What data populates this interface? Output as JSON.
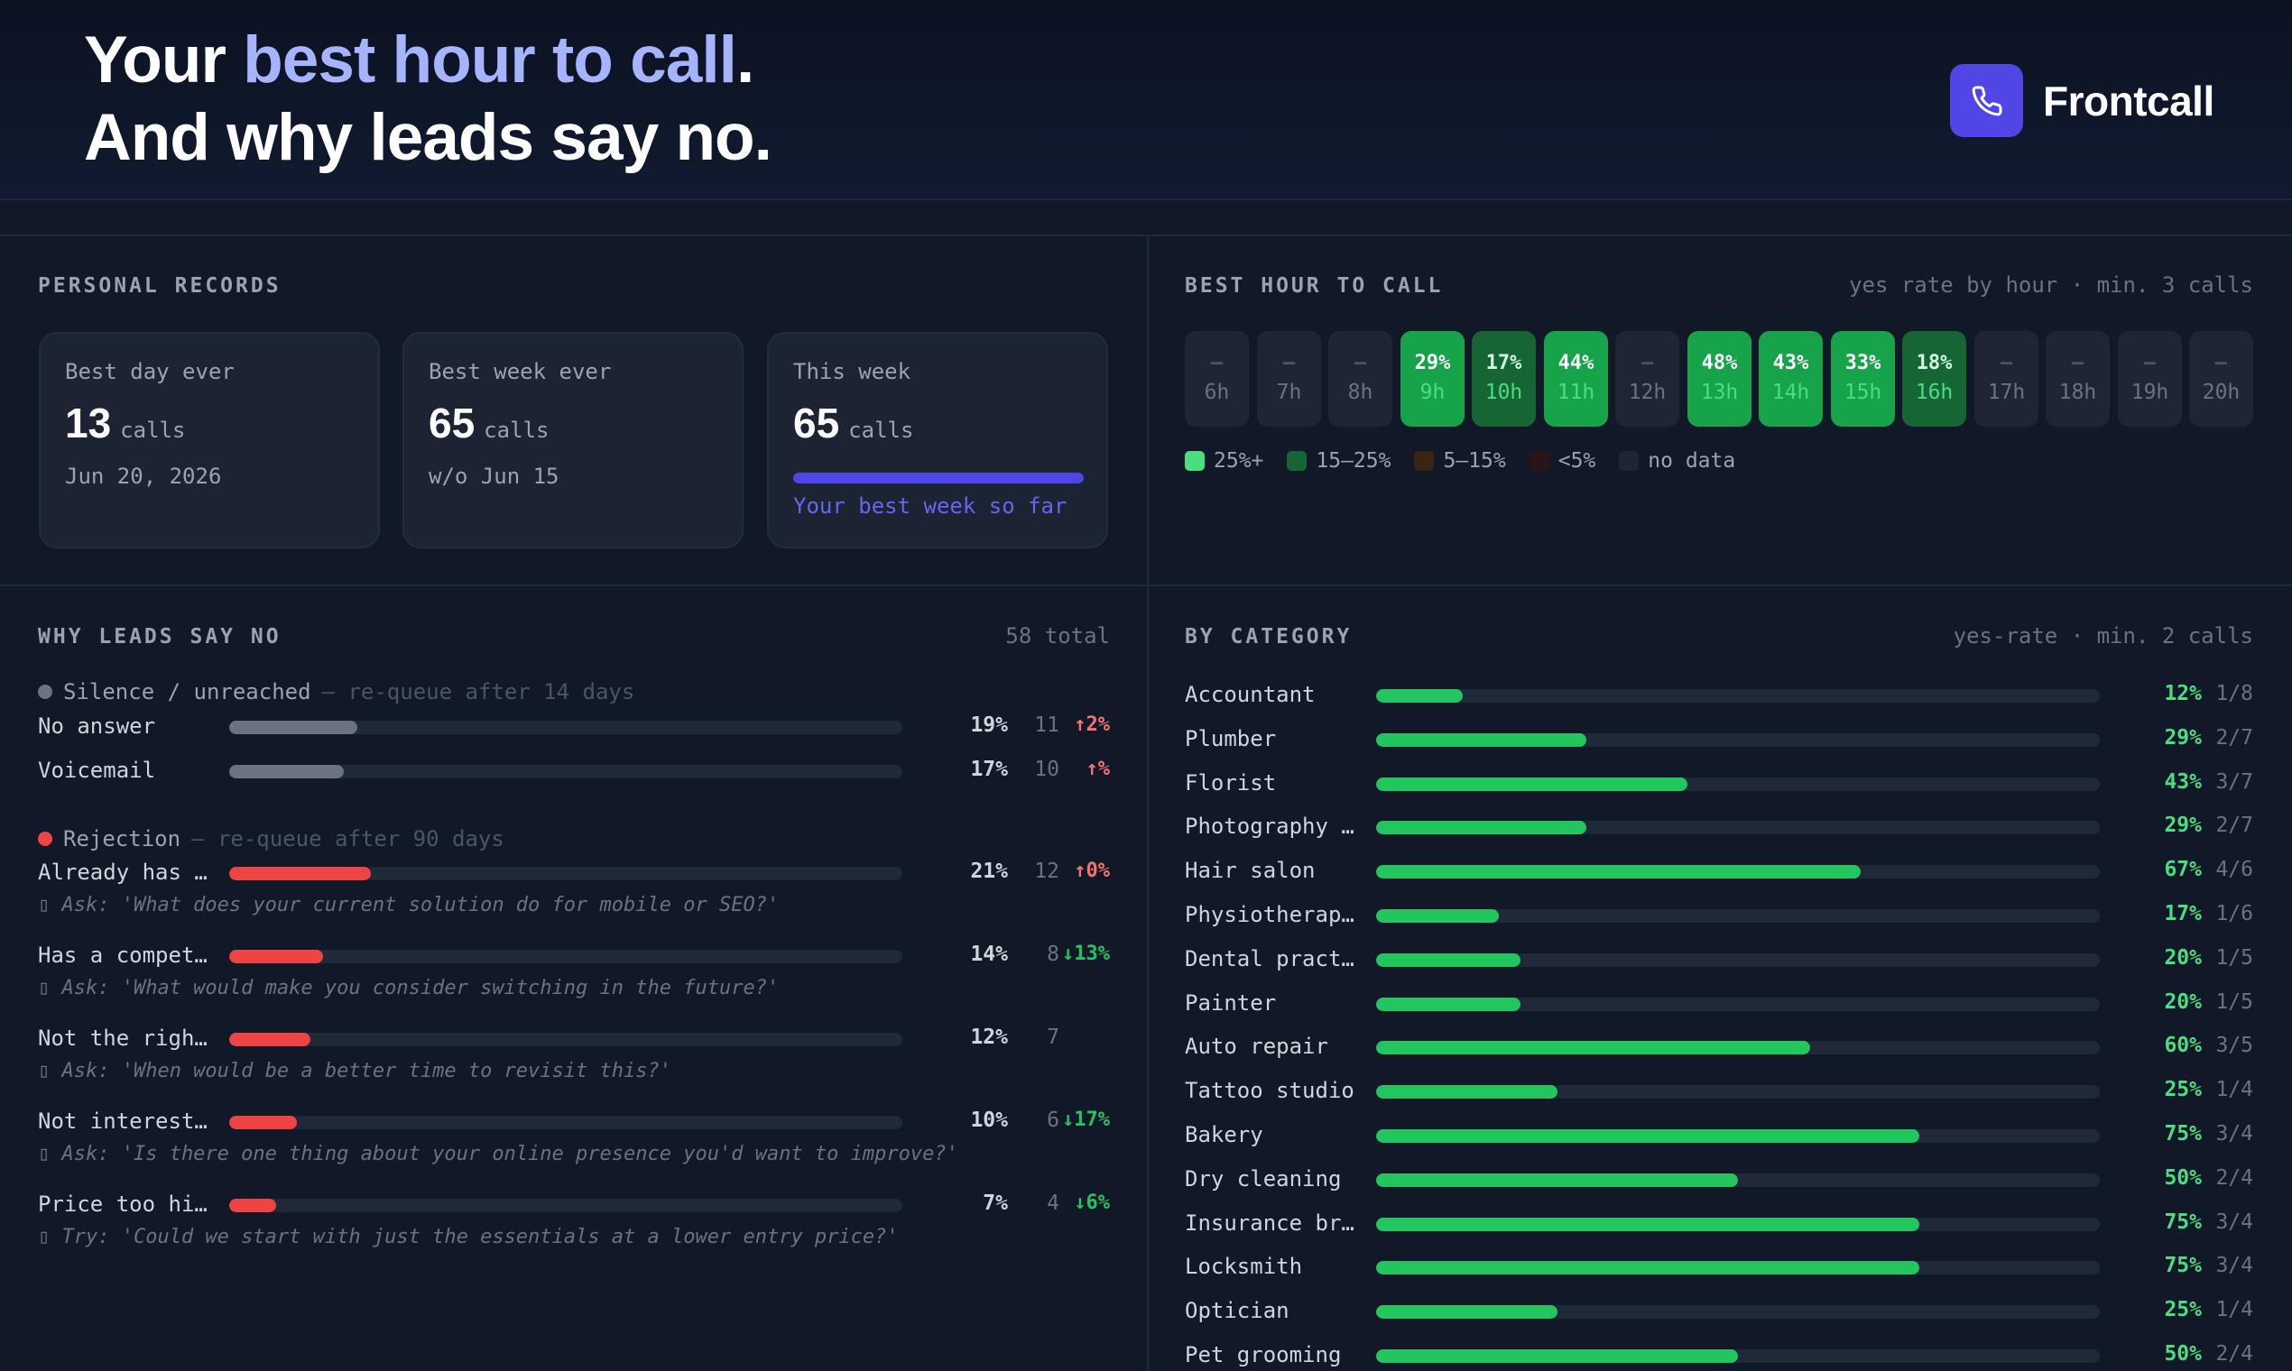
{
  "colors": {
    "accent": "#a5b4fc",
    "brand": "#4f46e5",
    "green_strong": "#16a34a",
    "green_mid": "#166534",
    "orange": "#3b2414",
    "red_dark": "#2a1418",
    "no_data": "#1f2633",
    "silence": "#6b7280",
    "rejection": "#ef4444",
    "trend_up": "#f87171",
    "trend_down": "#22c55e"
  },
  "header": {
    "line1_before": "Your ",
    "line1_accent": "best hour to call",
    "line1_after": ".",
    "line2": "And why leads say no.",
    "brand_icon": "phone-icon",
    "brand_name": "Frontcall"
  },
  "records": {
    "title": "PERSONAL RECORDS",
    "cards": [
      {
        "label": "Best day ever",
        "value": "13",
        "unit": "calls",
        "sub": "Jun 20, 2026"
      },
      {
        "label": "Best week ever",
        "value": "65",
        "unit": "calls",
        "sub": "w/o Jun 15"
      },
      {
        "label": "This week",
        "value": "65",
        "unit": "calls",
        "progress": 1.0,
        "foot": "Your best week so far"
      }
    ]
  },
  "best_hour": {
    "title": "BEST HOUR TO CALL",
    "note": "yes rate by hour · min. 3 calls",
    "hours": [
      {
        "label": "6h",
        "pct": "–",
        "tier": "none"
      },
      {
        "label": "7h",
        "pct": "–",
        "tier": "none"
      },
      {
        "label": "8h",
        "pct": "–",
        "tier": "none"
      },
      {
        "label": "9h",
        "pct": "29%",
        "tier": "high"
      },
      {
        "label": "10h",
        "pct": "17%",
        "tier": "mid"
      },
      {
        "label": "11h",
        "pct": "44%",
        "tier": "high"
      },
      {
        "label": "12h",
        "pct": "–",
        "tier": "none"
      },
      {
        "label": "13h",
        "pct": "48%",
        "tier": "high"
      },
      {
        "label": "14h",
        "pct": "43%",
        "tier": "high"
      },
      {
        "label": "15h",
        "pct": "33%",
        "tier": "high"
      },
      {
        "label": "16h",
        "pct": "18%",
        "tier": "mid"
      },
      {
        "label": "17h",
        "pct": "–",
        "tier": "none"
      },
      {
        "label": "18h",
        "pct": "–",
        "tier": "none"
      },
      {
        "label": "19h",
        "pct": "–",
        "tier": "none"
      },
      {
        "label": "20h",
        "pct": "–",
        "tier": "none"
      }
    ],
    "legend": [
      {
        "label": "25%+",
        "color": "#4ade80"
      },
      {
        "label": "15–25%",
        "color": "#166534"
      },
      {
        "label": "5–15%",
        "color": "#3b2414"
      },
      {
        "label": "<5%",
        "color": "#2a1418"
      },
      {
        "label": "no data",
        "color": "#1f2633"
      }
    ]
  },
  "reasons": {
    "title": "WHY LEADS SAY NO",
    "total": "58 total",
    "groups": [
      {
        "name": "Silence / unreached",
        "note": "— re-queue after 14 days",
        "dot": "#6b7280",
        "rows": [
          {
            "label": "No answer",
            "fraction": 0.19,
            "pct": "19%",
            "count": "11",
            "trend": "↑2%",
            "trend_dir": "up"
          },
          {
            "label": "Voicemail",
            "fraction": 0.17,
            "pct": "17%",
            "count": "10",
            "trend": "↑%",
            "trend_dir": "up"
          }
        ]
      },
      {
        "name": "Rejection",
        "note": "— re-queue after 90 days",
        "dot": "#ef4444",
        "rows": [
          {
            "label": "Already has …",
            "fraction": 0.21,
            "pct": "21%",
            "count": "12",
            "trend": "↑0%",
            "trend_dir": "up",
            "tip": "▯ Ask: 'What does your current solution do for mobile or SEO?'"
          },
          {
            "label": "Has a compet…",
            "fraction": 0.14,
            "pct": "14%",
            "count": "8",
            "trend": "↓13%",
            "trend_dir": "down",
            "tip": "▯ Ask: 'What would make you consider switching in the future?'"
          },
          {
            "label": "Not the righ…",
            "fraction": 0.12,
            "pct": "12%",
            "count": "7",
            "trend": "",
            "trend_dir": "none",
            "tip": "▯ Ask: 'When would be a better time to revisit this?'"
          },
          {
            "label": "Not interest…",
            "fraction": 0.1,
            "pct": "10%",
            "count": "6",
            "trend": "↓17%",
            "trend_dir": "down",
            "tip": "▯ Ask: 'Is there one thing about your online presence you'd want to improve?'"
          },
          {
            "label": "Price too hi…",
            "fraction": 0.07,
            "pct": "7%",
            "count": "4",
            "trend": "↓6%",
            "trend_dir": "down",
            "tip": "▯ Try: 'Could we start with just the essentials at a lower entry price?'"
          }
        ]
      }
    ]
  },
  "categories": {
    "title": "BY CATEGORY",
    "note": "yes-rate · min. 2 calls",
    "rows": [
      {
        "label": "Accountant",
        "fraction": 0.12,
        "pct": "12%",
        "ratio": "1/8"
      },
      {
        "label": "Plumber",
        "fraction": 0.29,
        "pct": "29%",
        "ratio": "2/7"
      },
      {
        "label": "Florist",
        "fraction": 0.43,
        "pct": "43%",
        "ratio": "3/7"
      },
      {
        "label": "Photography …",
        "fraction": 0.29,
        "pct": "29%",
        "ratio": "2/7"
      },
      {
        "label": "Hair salon",
        "fraction": 0.67,
        "pct": "67%",
        "ratio": "4/6"
      },
      {
        "label": "Physiotherap…",
        "fraction": 0.17,
        "pct": "17%",
        "ratio": "1/6"
      },
      {
        "label": "Dental pract…",
        "fraction": 0.2,
        "pct": "20%",
        "ratio": "1/5"
      },
      {
        "label": "Painter",
        "fraction": 0.2,
        "pct": "20%",
        "ratio": "1/5"
      },
      {
        "label": "Auto repair",
        "fraction": 0.6,
        "pct": "60%",
        "ratio": "3/5"
      },
      {
        "label": "Tattoo studio",
        "fraction": 0.25,
        "pct": "25%",
        "ratio": "1/4"
      },
      {
        "label": "Bakery",
        "fraction": 0.75,
        "pct": "75%",
        "ratio": "3/4"
      },
      {
        "label": "Dry cleaning",
        "fraction": 0.5,
        "pct": "50%",
        "ratio": "2/4"
      },
      {
        "label": "Insurance br…",
        "fraction": 0.75,
        "pct": "75%",
        "ratio": "3/4"
      },
      {
        "label": "Locksmith",
        "fraction": 0.75,
        "pct": "75%",
        "ratio": "3/4"
      },
      {
        "label": "Optician",
        "fraction": 0.25,
        "pct": "25%",
        "ratio": "1/4"
      },
      {
        "label": "Pet grooming",
        "fraction": 0.5,
        "pct": "50%",
        "ratio": "2/4"
      }
    ]
  }
}
